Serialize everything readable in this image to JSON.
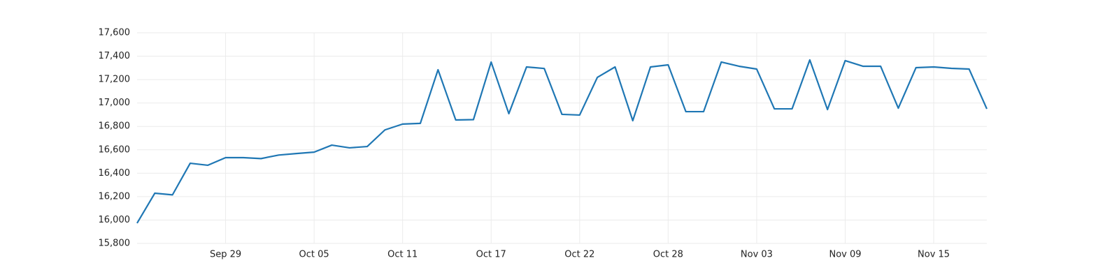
{
  "chart_data": {
    "type": "line",
    "categories": [
      null,
      null,
      null,
      null,
      null,
      "Sep 29",
      null,
      null,
      null,
      null,
      "Oct 05",
      null,
      null,
      null,
      null,
      "Oct 11",
      null,
      null,
      null,
      null,
      "Oct 17",
      null,
      null,
      null,
      null,
      "Oct 22",
      null,
      null,
      null,
      null,
      "Oct 28",
      null,
      null,
      null,
      null,
      "Nov 03",
      null,
      null,
      null,
      null,
      "Nov 09",
      null,
      null,
      null,
      null,
      "Nov 15",
      null,
      null,
      null
    ],
    "series": [
      {
        "color": "#1f77b4",
        "values": [
          15973,
          16229,
          16215,
          16485,
          16468,
          16533,
          16533,
          16525,
          16555,
          16568,
          16580,
          16640,
          16617,
          16628,
          16770,
          16820,
          16826,
          17284,
          16855,
          16858,
          17350,
          16909,
          17308,
          17295,
          16903,
          16897,
          17219,
          17308,
          16849,
          17308,
          17326,
          16926,
          16926,
          17350,
          17314,
          17290,
          16950,
          16950,
          17368,
          16944,
          17362,
          17314,
          17314,
          16956,
          17302,
          17308,
          17296,
          17290,
          16950
        ]
      }
    ],
    "ylim": [
      15800,
      17600
    ],
    "yticks": [
      {
        "value": 15800,
        "label": "15,800"
      },
      {
        "value": 16000,
        "label": "16,000"
      },
      {
        "value": 16200,
        "label": "16,200"
      },
      {
        "value": 16400,
        "label": "16,400"
      },
      {
        "value": 16600,
        "label": "16,600"
      },
      {
        "value": 16800,
        "label": "16,800"
      },
      {
        "value": 17000,
        "label": "17,000"
      },
      {
        "value": 17200,
        "label": "17,200"
      },
      {
        "value": 17400,
        "label": "17,400"
      },
      {
        "value": 17600,
        "label": "17,600"
      }
    ],
    "grid": true
  }
}
